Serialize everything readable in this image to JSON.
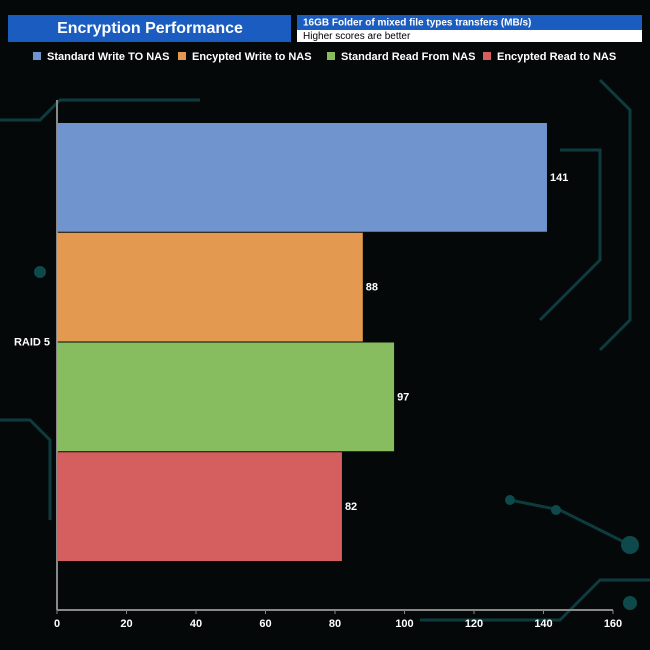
{
  "chart_data": {
    "type": "hbar",
    "title": "Encryption Performance",
    "subtitle": "16GB Folder of mixed file types transfers (MB/s)",
    "note": "Higher scores are better",
    "categories": [
      "RAID 5"
    ],
    "series": [
      {
        "name": "Standard Write TO NAS",
        "color": "#7094cd",
        "values": [
          141
        ]
      },
      {
        "name": "Encypted Write to NAS",
        "color": "#e39a50",
        "values": [
          88
        ]
      },
      {
        "name": "Standard Read From NAS",
        "color": "#87bd5e",
        "values": [
          97
        ]
      },
      {
        "name": "Encypted Read to NAS",
        "color": "#d55f5f",
        "values": [
          82
        ]
      }
    ],
    "xlim": [
      0,
      160
    ],
    "xticks": [
      0,
      20,
      40,
      60,
      80,
      100,
      120,
      140,
      160
    ],
    "legend": "top"
  }
}
